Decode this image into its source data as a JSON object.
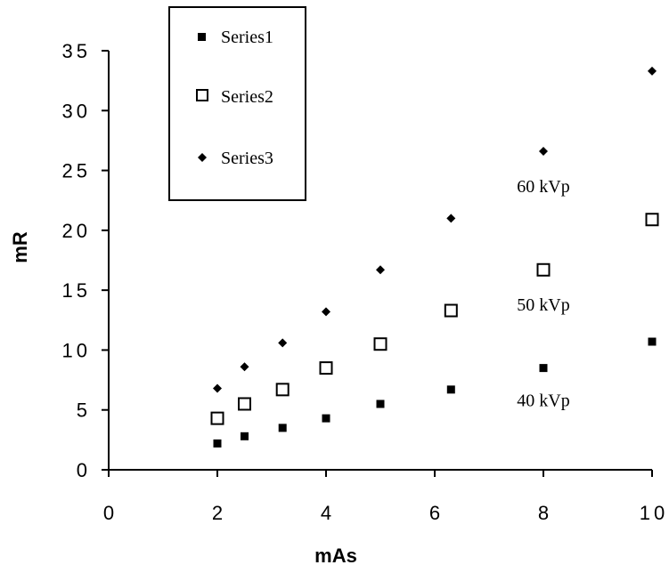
{
  "chart_data": {
    "type": "scatter",
    "title": "",
    "xlabel": "mAs",
    "ylabel": "mR",
    "xlim": [
      0,
      10
    ],
    "ylim": [
      0,
      35
    ],
    "xticks": [
      "0",
      "2",
      "4",
      "6",
      "8",
      "10"
    ],
    "yticks": [
      "0",
      "5",
      "10",
      "15",
      "20",
      "25",
      "30",
      "35"
    ],
    "xtick_values": [
      0,
      2,
      4,
      6,
      8,
      10
    ],
    "ytick_values": [
      0,
      5,
      10,
      15,
      20,
      25,
      30,
      35
    ],
    "grid": false,
    "legend_position": "top-left (boxed)",
    "series": [
      {
        "name": "Series1",
        "marker": "filled-square",
        "color": "#000000",
        "x": [
          2,
          2.5,
          3.2,
          4,
          5,
          6.3,
          8,
          10
        ],
        "y": [
          2.2,
          2.8,
          3.5,
          4.3,
          5.5,
          6.7,
          8.5,
          10.7
        ]
      },
      {
        "name": "Series2",
        "marker": "open-square",
        "color": "#000000",
        "x": [
          2,
          2.5,
          3.2,
          4,
          5,
          6.3,
          8,
          10
        ],
        "y": [
          4.3,
          5.5,
          6.7,
          8.5,
          10.5,
          13.3,
          16.7,
          20.9
        ]
      },
      {
        "name": "Series3",
        "marker": "filled-diamond",
        "color": "#000000",
        "x": [
          2,
          2.5,
          3.2,
          4,
          5,
          6.3,
          8,
          10
        ],
        "y": [
          6.8,
          8.6,
          10.6,
          13.2,
          16.7,
          21.0,
          26.6,
          33.3
        ]
      }
    ],
    "annotations": [
      {
        "text": "60 kVp",
        "x": 8,
        "y": 23.2
      },
      {
        "text": "50 kVp",
        "x": 8,
        "y": 13.3
      },
      {
        "text": "40 kVp",
        "x": 8,
        "y": 5.3
      }
    ]
  }
}
